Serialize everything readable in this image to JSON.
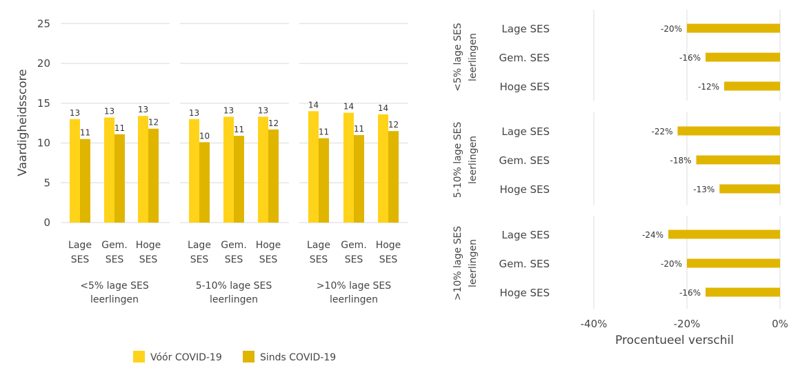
{
  "colors": {
    "before": "#FFD319",
    "since": "#E0B500",
    "diff": "#E0B500",
    "grid": "#E6E6E6"
  },
  "chart_data": [
    {
      "type": "bar",
      "ylabel": "Vaardigheidsscore",
      "ylim": [
        0,
        25
      ],
      "yticks": [
        "0",
        "5",
        "10",
        "15",
        "20",
        "25"
      ],
      "grid": true,
      "legend_position": "bottom",
      "groups": [
        {
          "label": [
            "<5% lage SES",
            "leerlingen"
          ],
          "categories": [
            [
              "Lage",
              "SES"
            ],
            [
              "Gem.",
              "SES"
            ],
            [
              "Hoge",
              "SES"
            ]
          ],
          "before": [
            13.0,
            13.2,
            13.4
          ],
          "since": [
            10.5,
            11.1,
            11.8
          ],
          "before_labels": [
            "13",
            "13",
            "13"
          ],
          "since_labels": [
            "11",
            "11",
            "12"
          ]
        },
        {
          "label": [
            "5-10% lage SES",
            "leerlingen"
          ],
          "categories": [
            [
              "Lage",
              "SES"
            ],
            [
              "Gem.",
              "SES"
            ],
            [
              "Hoge",
              "SES"
            ]
          ],
          "before": [
            13.0,
            13.3,
            13.3
          ],
          "since": [
            10.1,
            10.9,
            11.7
          ],
          "before_labels": [
            "13",
            "13",
            "13"
          ],
          "since_labels": [
            "10",
            "11",
            "12"
          ]
        },
        {
          "label": [
            ">10% lage SES",
            "leerlingen"
          ],
          "categories": [
            [
              "Lage",
              "SES"
            ],
            [
              "Gem.",
              "SES"
            ],
            [
              "Hoge",
              "SES"
            ]
          ],
          "before": [
            14.0,
            13.8,
            13.6
          ],
          "since": [
            10.6,
            11.0,
            11.5
          ],
          "before_labels": [
            "14",
            "14",
            "14"
          ],
          "since_labels": [
            "11",
            "11",
            "12"
          ]
        }
      ],
      "legend": [
        "Vóór COVID-19",
        "Sinds COVID-19"
      ]
    },
    {
      "type": "bar",
      "orientation": "horizontal",
      "xlabel": "Procentueel verschil",
      "xlim": [
        -40,
        0
      ],
      "xticks": [
        "-40%",
        "-20%",
        "0%"
      ],
      "xtick_values": [
        -40,
        -20,
        0
      ],
      "grid": true,
      "groups": [
        {
          "label": [
            "<5% lage SES",
            "leerlingen"
          ],
          "categories": [
            "Lage SES",
            "Gem. SES",
            "Hoge SES"
          ],
          "values": [
            -20,
            -16,
            -12
          ],
          "value_labels": [
            "-20%",
            "-16%",
            "-12%"
          ]
        },
        {
          "label": [
            "5-10% lage SES",
            "leerlingen"
          ],
          "categories": [
            "Lage SES",
            "Gem. SES",
            "Hoge SES"
          ],
          "values": [
            -22,
            -18,
            -13
          ],
          "value_labels": [
            "-22%",
            "-18%",
            "-13%"
          ]
        },
        {
          "label": [
            ">10% lage SES",
            "leerlingen"
          ],
          "categories": [
            "Lage SES",
            "Gem. SES",
            "Hoge SES"
          ],
          "values": [
            -24,
            -20,
            -16
          ],
          "value_labels": [
            "-24%",
            "-20%",
            "-16%"
          ]
        }
      ]
    }
  ]
}
